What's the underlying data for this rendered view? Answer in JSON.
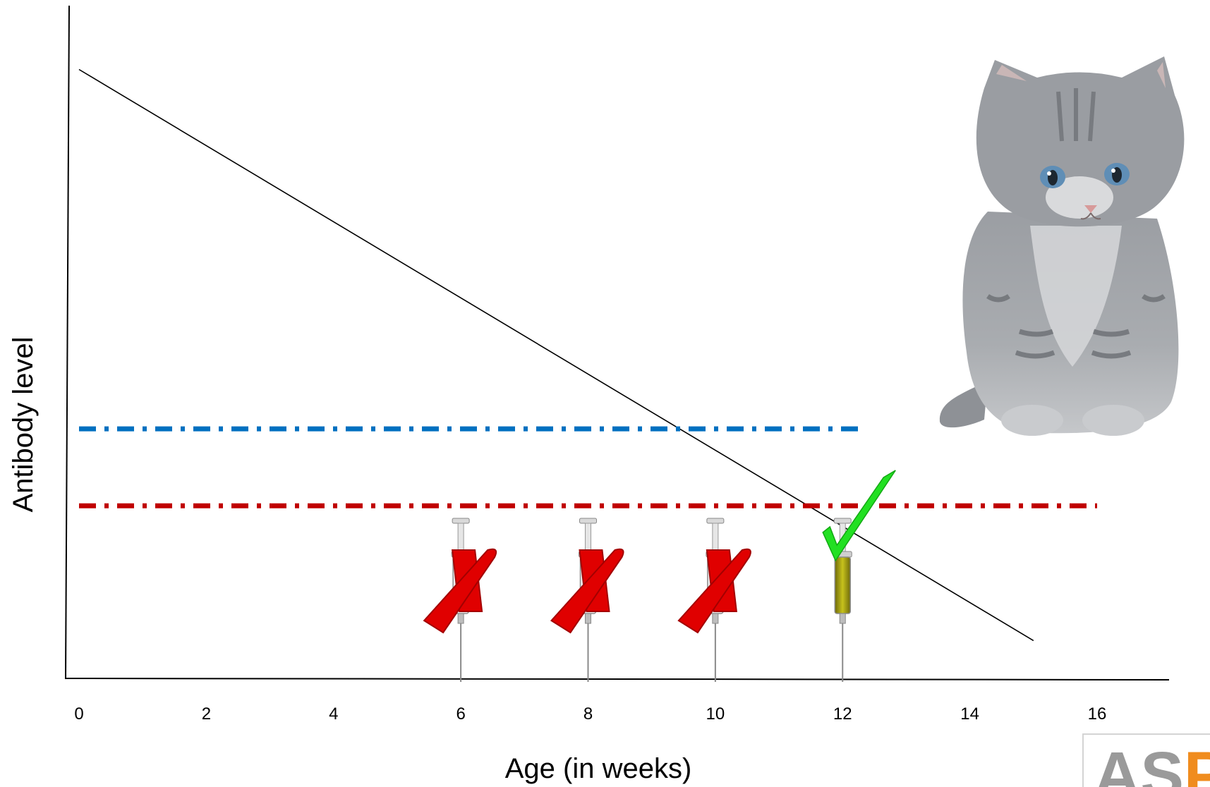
{
  "chart_data": {
    "type": "line",
    "xlabel": "Age (in weeks)",
    "ylabel": "Antibody level",
    "x_ticks": [
      "0",
      "2",
      "4",
      "6",
      "8",
      "10",
      "12",
      "14",
      "16"
    ],
    "xlim": [
      0,
      16
    ],
    "ylim": [
      0,
      10
    ],
    "series": [
      {
        "values": [
          [
            0,
            9.5
          ],
          [
            15,
            0.6
          ]
        ],
        "color": "#000000",
        "style": "solid"
      },
      {
        "values": [
          [
            0,
            3.9
          ],
          [
            12.3,
            3.9
          ]
        ],
        "color": "#0070C0",
        "style": "dash-dot"
      },
      {
        "values": [
          [
            0,
            2.7
          ],
          [
            16,
            2.7
          ]
        ],
        "color": "#C00000",
        "style": "dash-dot"
      }
    ],
    "vaccinations": [
      {
        "week": 6,
        "result": "x-mark",
        "color": "#E00000"
      },
      {
        "week": 8,
        "result": "x-mark",
        "color": "#E00000"
      },
      {
        "week": 10,
        "result": "x-mark",
        "color": "#E00000"
      },
      {
        "week": 12,
        "result": "check-mark",
        "color": "#22E022"
      }
    ],
    "legend": "none",
    "grid": false
  },
  "images": {
    "photo": "kitten"
  },
  "logo": {
    "text": "ASPC",
    "color_a": "#9A9A9A",
    "color_b": "#F08C1E"
  }
}
